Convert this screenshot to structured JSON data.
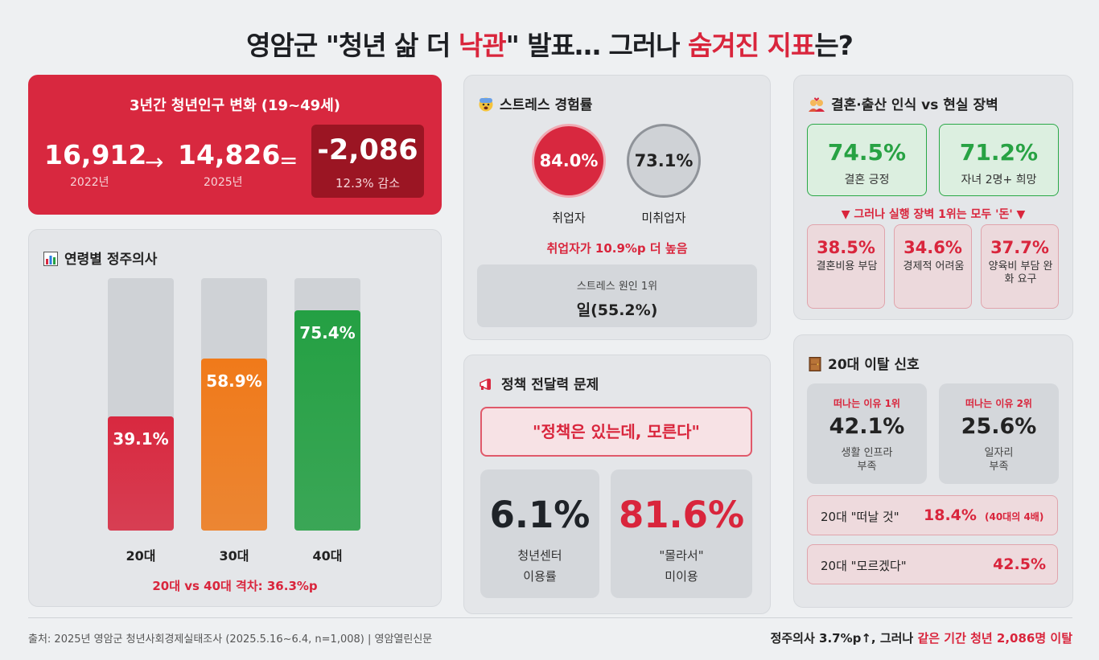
{
  "title": {
    "part1": "영암군 \"청년 삶 더 ",
    "highlight1": "낙관",
    "part2": "\" 발표… 그러나 ",
    "highlight2": "숨겨진 지표",
    "part3": "는?"
  },
  "population": {
    "title": "3년간 청년인구 변화 (19~49세)",
    "from_value": "16,912",
    "from_year": "2022년",
    "arrow": "→",
    "to_value": "14,826",
    "to_year": "2025년",
    "equals": "=",
    "change": "-2,086",
    "change_note": "12.3% 감소"
  },
  "residence": {
    "icon": "bar-chart-icon",
    "title": "연령별 정주의사",
    "bars": [
      {
        "label": "20대",
        "value": 39.1,
        "display": "39.1%",
        "color": "#d8283f"
      },
      {
        "label": "30대",
        "value": 58.9,
        "display": "58.9%",
        "color": "#f07a1a"
      },
      {
        "label": "40대",
        "value": 75.4,
        "display": "75.4%",
        "color": "#24a043"
      }
    ],
    "gap_note": "20대 vs 40대 격차: 36.3%p"
  },
  "stress": {
    "icon": "anxious-face-icon",
    "title": "스트레스 경험률",
    "employed_value": "84.0%",
    "employed_label": "취업자",
    "unemployed_value": "73.1%",
    "unemployed_label": "미취업자",
    "note": "취업자가 10.9%p 더 높음",
    "cause_label": "스트레스 원인 1위",
    "cause_value": "일(55.2%)"
  },
  "policy": {
    "icon": "megaphone-icon",
    "title": "정책 전달력 문제",
    "quote": "\"정책은 있는데, 모른다\"",
    "stat1_value": "6.1%",
    "stat1_line1": "청년센터",
    "stat1_line2": "이용률",
    "stat2_value": "81.6%",
    "stat2_line1": "\"몰라서\"",
    "stat2_line2": "미이용"
  },
  "marriage": {
    "icon": "couple-icon",
    "title": "결혼·출산 인식 vs 현실 장벽",
    "positive": [
      {
        "value": "74.5%",
        "label": "결혼 긍정"
      },
      {
        "value": "71.2%",
        "label": "자녀 2명+ 희망"
      }
    ],
    "warning": "▼ 그러나 실행 장벽 1위는 모두 '돈' ▼",
    "barriers": [
      {
        "value": "38.5%",
        "label": "결혼비용 부담"
      },
      {
        "value": "34.6%",
        "label": "경제적 어려움"
      },
      {
        "value": "37.7%",
        "label": "양육비 부담 완화 요구"
      }
    ]
  },
  "leave": {
    "icon": "door-icon",
    "title": "20대 이탈 신호",
    "reasons": [
      {
        "rank": "떠나는 이유 1위",
        "value": "42.1%",
        "line1": "생활 인프라",
        "line2": "부족"
      },
      {
        "rank": "떠나는 이유 2위",
        "value": "25.6%",
        "line1": "일자리",
        "line2": "부족"
      }
    ],
    "row1_label": "20대 \"떠날 것\"",
    "row1_value": "18.4%",
    "row1_note": "(40대의 4배)",
    "row2_label": "20대 \"모르겠다\"",
    "row2_value": "42.5%"
  },
  "footer": {
    "source": "출처: 2025년 영암군 청년사회경제실태조사 (2025.5.16~6.4, n=1,008) | 영암열린신문",
    "conclusion_prefix": "정주의사 3.7%p↑, 그러나 ",
    "conclusion_highlight": "같은 기간 청년 2,086명 이탈"
  }
}
